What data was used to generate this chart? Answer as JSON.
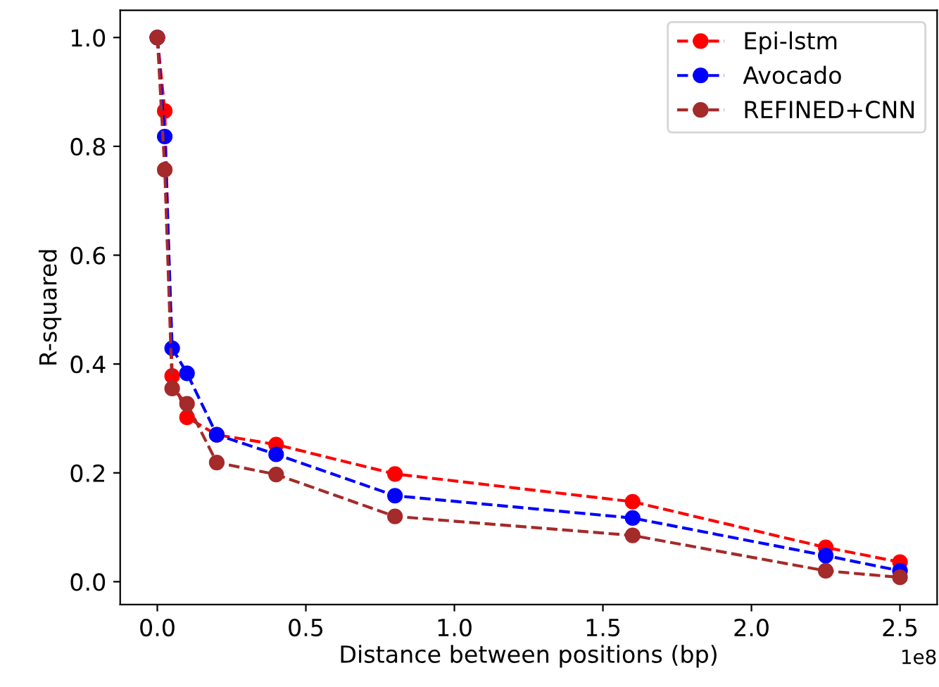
{
  "chart_data": {
    "type": "line",
    "xlabel": "Distance between positions (bp)",
    "ylabel": "R-squared",
    "x": [
      0,
      0.025,
      0.05,
      0.1,
      0.2,
      0.4,
      0.8,
      1.6,
      2.25,
      2.5
    ],
    "series": [
      {
        "name": "Epi-lstm",
        "color": "#ff0000",
        "values": [
          1.0,
          0.865,
          0.378,
          0.302,
          0.27,
          0.252,
          0.198,
          0.147,
          0.063,
          0.036
        ]
      },
      {
        "name": "Avocado",
        "color": "#0000ff",
        "values": [
          1.0,
          0.818,
          0.429,
          0.383,
          0.27,
          0.234,
          0.158,
          0.117,
          0.048,
          0.02
        ]
      },
      {
        "name": "REFINED+CNN",
        "color": "#a52a2a",
        "values": [
          1.0,
          0.757,
          0.355,
          0.327,
          0.219,
          0.197,
          0.12,
          0.085,
          0.02,
          0.008
        ]
      }
    ],
    "xlim": [
      -0.125,
      2.625
    ],
    "ylim": [
      -0.042,
      1.05
    ],
    "xticks": [
      {
        "value": 0,
        "label": "0.0"
      },
      {
        "value": 0.5,
        "label": "0.5"
      },
      {
        "value": 1.0,
        "label": "1.0"
      },
      {
        "value": 1.5,
        "label": "1.5"
      },
      {
        "value": 2.0,
        "label": "2.0"
      },
      {
        "value": 2.5,
        "label": "2.5"
      }
    ],
    "yticks": [
      {
        "value": 0,
        "label": "0.0"
      },
      {
        "value": 0.2,
        "label": "0.2"
      },
      {
        "value": 0.4,
        "label": "0.4"
      },
      {
        "value": 0.6,
        "label": "0.6"
      },
      {
        "value": 0.8,
        "label": "0.8"
      },
      {
        "value": 1.0,
        "label": "1.0"
      }
    ],
    "annotations": [
      "1e8"
    ],
    "marker": "circle",
    "line_style": "dashed",
    "grid": false,
    "legend": "top right"
  }
}
